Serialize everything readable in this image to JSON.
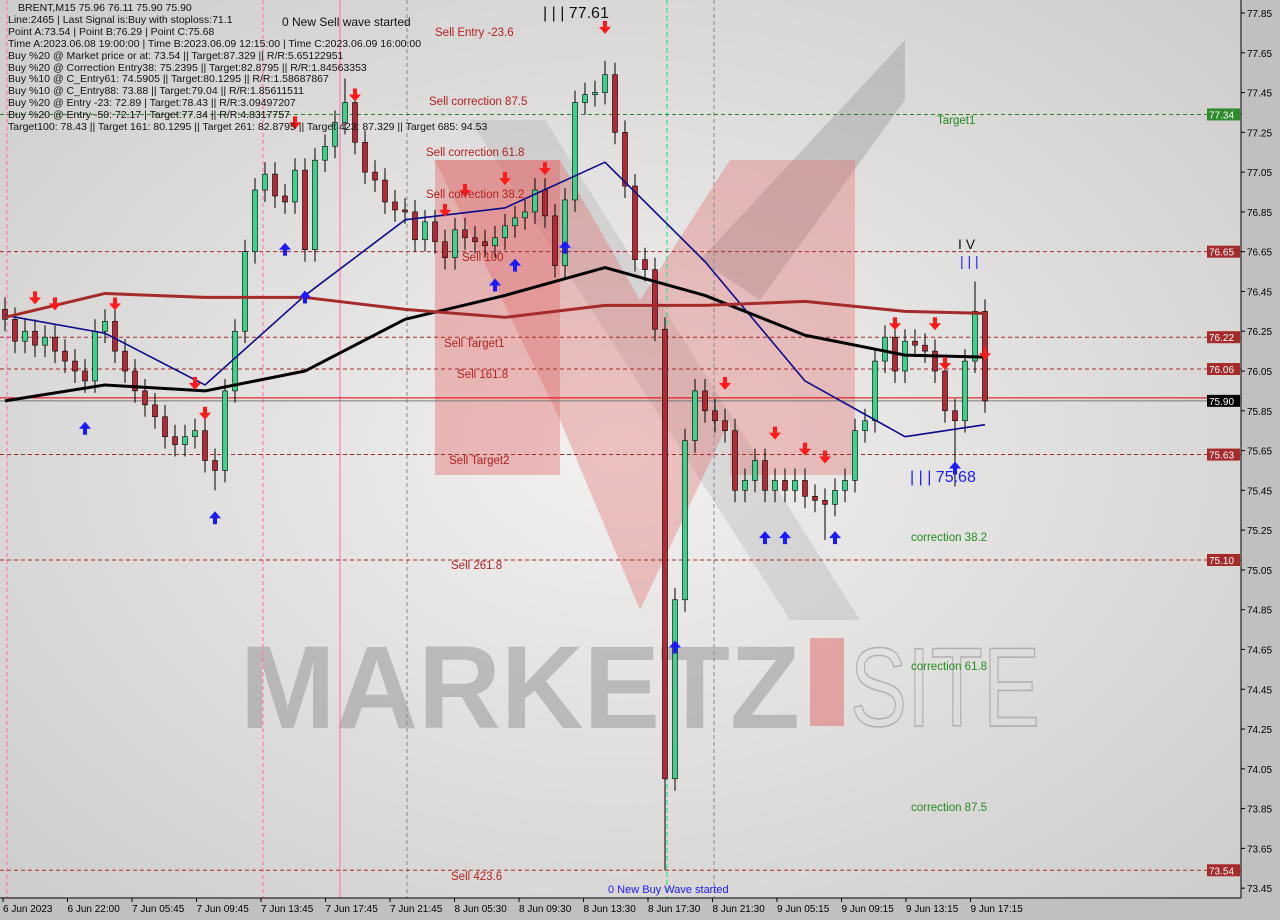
{
  "header": {
    "symbol_line": "BRENT,M15  75.96 76.11 75.90 75.90",
    "lines": [
      "Line:2465 | Last Signal is:Buy with stoploss:71.1",
      "Point A:73.54 | Point B:76.29 | Point C:75.68",
      "Time A:2023.06.08 19:00:00 | Time B:2023.06.09 12:15:00 | Time C:2023.06.09 16:00:00",
      "Buy %20 @ Market price or at: 73.54 || Target:87.329 || R/R:5.65122951",
      "Buy %20 @ Correction Entry38: 75.2395 || Target:82.8795 || R/R:1.84563353",
      "Buy %10 @ C_Entry61: 74.5905 || Target:80.1295 || R/R:1.58687867",
      "Buy %10 @ C_Entry88: 73.88 || Target:79.04 || R/R:1.85611511",
      "Buy %20 @ Entry -23: 72.89 | Target:78.43 || R/R:3.09497207",
      "Buy %20 @ Entry -50: 72.17 | Target:77.34 || R/R:4.8317757",
      "Target100: 78.43 || Target 161: 80.1295 || Target 261: 82.8795 || Target 423: 87.329 || Target 685: 94.53"
    ]
  },
  "annotations": {
    "sell_wave": "0 New Sell wave started",
    "buy_wave": "0 New Buy Wave started",
    "wave_high": "| | | 77.61",
    "wave_iv": "I V",
    "wave_iii": "| | |",
    "wave_low": "| | | 75.68",
    "sell_entry": "Sell Entry -23.6",
    "sell_corr_875": "Sell correction 87.5",
    "sell_corr_618": "Sell correction 61.8",
    "sell_corr_382": "Sell correction 38.2",
    "sell_100": "Sell 100",
    "sell_target1": "Sell Target1",
    "sell_1618": "Sell 161.8",
    "sell_target2": "Sell Target2",
    "sell_2618": "Sell 261.8",
    "sell_4236": "Sell 423.6",
    "target1": "Target1",
    "corr_382": "correction 38.2",
    "corr_618": "correction 61.8",
    "corr_875": "correction 87.5"
  },
  "watermark": {
    "text_left": "MARKETZ",
    "text_mid": "I",
    "text_right": "SITE"
  },
  "colors": {
    "bull": "#3cd28c",
    "bear": "#b22a35",
    "fast_ma": "#0a0a8c",
    "mid_ma": "#000000",
    "slow_ma": "#a52a2a",
    "level": "#a52a2a",
    "target": "#228b22"
  },
  "chart_data": {
    "type": "candlestick",
    "symbol": "BRENT",
    "timeframe": "M15",
    "ylim": [
      73.45,
      77.85
    ],
    "y_ticks": [
      "77.85",
      "77.65",
      "77.45",
      "77.25",
      "77.05",
      "76.85",
      "76.65",
      "76.45",
      "76.25",
      "76.05",
      "75.85",
      "75.65",
      "75.45",
      "75.25",
      "75.05",
      "74.85",
      "74.65",
      "74.45",
      "74.25",
      "74.05",
      "73.85",
      "73.65",
      "73.45"
    ],
    "x_ticks": [
      "6 Jun 2023",
      "6 Jun 22:00",
      "7 Jun 05:45",
      "7 Jun 09:45",
      "7 Jun 13:45",
      "7 Jun 17:45",
      "7 Jun 21:45",
      "8 Jun 05:30",
      "8 Jun 09:30",
      "8 Jun 13:30",
      "8 Jun 17:30",
      "8 Jun 21:30",
      "9 Jun 05:15",
      "9 Jun 09:15",
      "9 Jun 13:15",
      "9 Jun 17:15"
    ],
    "closes": [
      76.31,
      76.2,
      76.25,
      76.18,
      76.22,
      76.15,
      76.1,
      76.05,
      76.0,
      76.25,
      76.3,
      76.15,
      76.05,
      75.95,
      75.88,
      75.82,
      75.72,
      75.68,
      75.72,
      75.75,
      75.6,
      75.55,
      75.95,
      76.25,
      76.65,
      76.96,
      77.04,
      76.93,
      76.9,
      77.06,
      76.66,
      77.11,
      77.18,
      77.3,
      77.4,
      77.2,
      77.05,
      77.01,
      76.9,
      76.86,
      76.85,
      76.71,
      76.8,
      76.7,
      76.62,
      76.76,
      76.72,
      76.7,
      76.68,
      76.72,
      76.78,
      76.82,
      76.85,
      76.96,
      76.83,
      76.58,
      76.91,
      77.4,
      77.44,
      77.45,
      77.54,
      77.25,
      76.98,
      76.61,
      76.56,
      76.26,
      74.0,
      74.9,
      75.7,
      75.95,
      75.85,
      75.8,
      75.75,
      75.45,
      75.5,
      75.6,
      75.45,
      75.5,
      75.45,
      75.5,
      75.42,
      75.4,
      75.38,
      75.45,
      75.5,
      75.75,
      75.8,
      76.1,
      76.22,
      76.05,
      76.2,
      76.18,
      76.15,
      76.05,
      75.85,
      75.8,
      76.1,
      76.35,
      75.9
    ],
    "extremes": [
      {
        "index": 34,
        "high": 77.52
      },
      {
        "index": 60,
        "high": 77.61
      },
      {
        "index": 66,
        "low": 73.54
      },
      {
        "index": 21,
        "low": 75.45
      },
      {
        "index": 82,
        "low": 75.2
      },
      {
        "index": 95,
        "low": 75.47
      },
      {
        "index": 97,
        "high": 76.5
      }
    ],
    "moving_averages": [
      {
        "role": "fast",
        "anchor_every": 10,
        "values": [
          76.33,
          76.24,
          75.98,
          76.43,
          76.81,
          76.87,
          77.1,
          76.6,
          76.0,
          75.72,
          75.78
        ]
      },
      {
        "role": "mid",
        "anchor_every": 10,
        "values": [
          75.9,
          75.98,
          75.95,
          76.05,
          76.31,
          76.43,
          76.57,
          76.43,
          76.23,
          76.13,
          76.12
        ]
      },
      {
        "role": "slow",
        "anchor_every": 10,
        "values": [
          76.32,
          76.44,
          76.42,
          76.42,
          76.36,
          76.32,
          76.38,
          76.38,
          76.4,
          76.35,
          76.34
        ]
      }
    ],
    "levels": [
      {
        "price": 77.34,
        "label": "77.34",
        "kind": "target"
      },
      {
        "price": 76.65,
        "label": "76.65",
        "kind": "level"
      },
      {
        "price": 76.22,
        "label": "76.22",
        "kind": "level"
      },
      {
        "price": 76.06,
        "label": "76.06",
        "kind": "level"
      },
      {
        "price": 75.63,
        "label": "75.63",
        "kind": "level"
      },
      {
        "price": 75.1,
        "label": "75.10",
        "kind": "level"
      },
      {
        "price": 73.54,
        "label": "73.54",
        "kind": "level"
      }
    ],
    "current_price": {
      "price": 75.9,
      "label": "75.90"
    },
    "signals": [
      {
        "index": 3,
        "type": "sell"
      },
      {
        "index": 5,
        "type": "sell"
      },
      {
        "index": 8,
        "type": "buy"
      },
      {
        "index": 11,
        "type": "sell"
      },
      {
        "index": 19,
        "type": "sell"
      },
      {
        "index": 20,
        "type": "sell"
      },
      {
        "index": 21,
        "type": "buy"
      },
      {
        "index": 29,
        "type": "sell"
      },
      {
        "index": 28,
        "type": "buy"
      },
      {
        "index": 30,
        "type": "buy"
      },
      {
        "index": 35,
        "type": "sell"
      },
      {
        "index": 44,
        "type": "sell"
      },
      {
        "index": 46,
        "type": "sell"
      },
      {
        "index": 49,
        "type": "buy"
      },
      {
        "index": 50,
        "type": "sell"
      },
      {
        "index": 51,
        "type": "buy"
      },
      {
        "index": 54,
        "type": "sell"
      },
      {
        "index": 56,
        "type": "buy"
      },
      {
        "index": 60,
        "type": "sell"
      },
      {
        "index": 67,
        "type": "buy"
      },
      {
        "index": 72,
        "type": "sell"
      },
      {
        "index": 76,
        "type": "buy"
      },
      {
        "index": 77,
        "type": "sell"
      },
      {
        "index": 78,
        "type": "buy"
      },
      {
        "index": 80,
        "type": "sell"
      },
      {
        "index": 82,
        "type": "sell"
      },
      {
        "index": 83,
        "type": "buy"
      },
      {
        "index": 89,
        "type": "sell"
      },
      {
        "index": 93,
        "type": "sell"
      },
      {
        "index": 95,
        "type": "buy"
      },
      {
        "index": 94,
        "type": "sell"
      },
      {
        "index": 98,
        "type": "sell"
      }
    ]
  }
}
